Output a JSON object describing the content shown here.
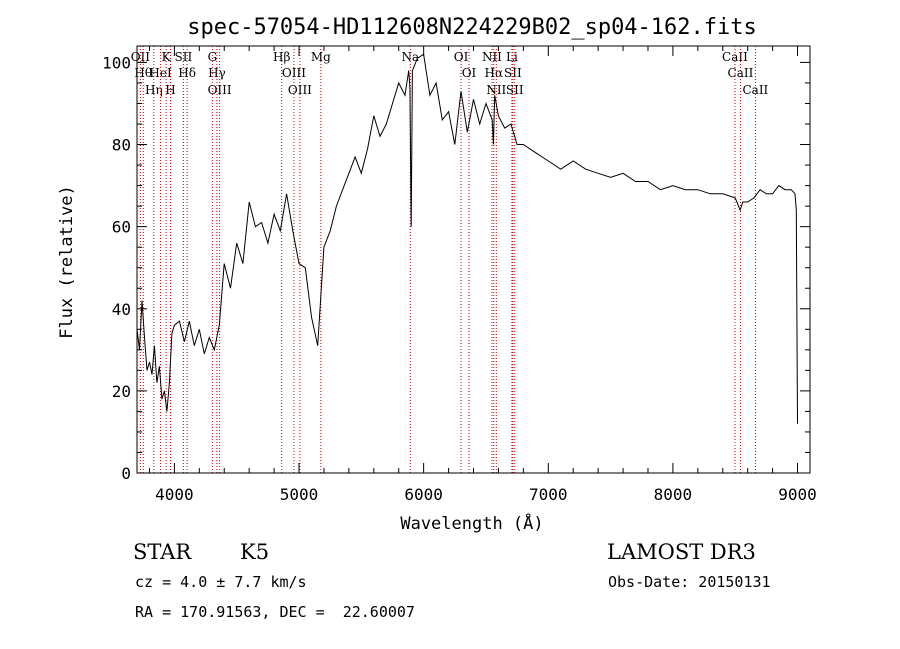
{
  "chart_data": {
    "type": "line",
    "title": "spec-57054-HD112608N224229B02_sp04-162.fits",
    "xlabel": "Wavelength (Å)",
    "ylabel": "Flux (relative)",
    "xlim": [
      3700,
      9100
    ],
    "ylim": [
      0,
      104
    ],
    "xticks": [
      4000,
      5000,
      6000,
      7000,
      8000,
      9000
    ],
    "yticks": [
      0,
      20,
      40,
      60,
      80,
      100
    ],
    "grid": false,
    "series": [
      {
        "x": [
          3700,
          3720,
          3740,
          3760,
          3780,
          3800,
          3820,
          3840,
          3860,
          3880,
          3900,
          3920,
          3940,
          3960,
          3980,
          4000,
          4040,
          4080,
          4120,
          4160,
          4200,
          4240,
          4280,
          4320,
          4360,
          4400,
          4450,
          4500,
          4550,
          4600,
          4650,
          4700,
          4750,
          4800,
          4850,
          4900,
          4950,
          5000,
          5050,
          5100,
          5150,
          5200,
          5250,
          5300,
          5350,
          5400,
          5450,
          5500,
          5550,
          5600,
          5650,
          5700,
          5750,
          5800,
          5850,
          5880,
          5890,
          5900,
          5910,
          5950,
          6000,
          6050,
          6100,
          6150,
          6200,
          6250,
          6300,
          6350,
          6400,
          6450,
          6500,
          6550,
          6560,
          6570,
          6600,
          6650,
          6700,
          6750,
          6800,
          6900,
          7000,
          7100,
          7200,
          7300,
          7400,
          7500,
          7600,
          7700,
          7800,
          7900,
          8000,
          8100,
          8200,
          8300,
          8400,
          8500,
          8540,
          8560,
          8600,
          8650,
          8700,
          8750,
          8800,
          8850,
          8900,
          8950,
          8980,
          8990,
          9000
        ],
        "y": [
          35,
          30,
          42,
          33,
          25,
          27,
          24,
          31,
          22,
          26,
          18,
          20,
          15,
          22,
          34,
          36,
          37,
          32,
          37,
          31,
          35,
          29,
          33,
          30,
          36,
          51,
          45,
          56,
          51,
          66,
          60,
          61,
          56,
          63,
          59,
          68,
          59,
          51,
          50,
          38,
          31,
          55,
          59,
          65,
          69,
          73,
          77,
          73,
          79,
          87,
          82,
          85,
          90,
          95,
          92,
          98,
          94,
          60,
          98,
          101,
          102,
          92,
          95,
          86,
          88,
          80,
          93,
          83,
          91,
          85,
          90,
          86,
          80,
          92,
          87,
          84,
          85,
          80,
          80,
          78,
          76,
          74,
          76,
          74,
          73,
          72,
          73,
          71,
          71,
          69,
          70,
          69,
          69,
          68,
          68,
          67,
          64,
          66,
          66,
          67,
          69,
          68,
          68,
          70,
          69,
          69,
          68,
          64,
          12
        ]
      }
    ],
    "line_markers": [
      {
        "label": "OII",
        "x": 3727
      },
      {
        "label": "Hθ",
        "x": 3750
      },
      {
        "label": "Hη",
        "x": 3835
      },
      {
        "label": "HeI",
        "x": 3889
      },
      {
        "label": "K",
        "x": 3934
      },
      {
        "label": "H",
        "x": 3969
      },
      {
        "label": "SII",
        "x": 4072
      },
      {
        "label": "Hδ",
        "x": 4102
      },
      {
        "label": "G",
        "x": 4305
      },
      {
        "label": "Hγ",
        "x": 4341
      },
      {
        "label": "OIII",
        "x": 4363
      },
      {
        "label": "Hβ",
        "x": 4861
      },
      {
        "label": "OIII",
        "x": 4959
      },
      {
        "label": "OIII",
        "x": 5007
      },
      {
        "label": "Mg",
        "x": 5175
      },
      {
        "label": "Na",
        "x": 5893
      },
      {
        "label": "OI",
        "x": 6300
      },
      {
        "label": "OI",
        "x": 6364
      },
      {
        "label": "NII",
        "x": 6548
      },
      {
        "label": "Hα",
        "x": 6563
      },
      {
        "label": "NII",
        "x": 6583
      },
      {
        "label": "Li",
        "x": 6708
      },
      {
        "label": "SII",
        "x": 6716
      },
      {
        "label": "SII",
        "x": 6731
      },
      {
        "label": "CaII",
        "x": 8498
      },
      {
        "label": "CaII",
        "x": 8542
      },
      {
        "label": "CaII",
        "x": 8662
      }
    ]
  },
  "info": {
    "object_class": "STAR",
    "subclass": "K5",
    "survey": "LAMOST DR3",
    "redshift": "cz = 4.0 ± 7.7 km/s",
    "obs_date": "Obs-Date: 20150131",
    "coords": "RA = 170.91563, DEC =  22.60007"
  }
}
